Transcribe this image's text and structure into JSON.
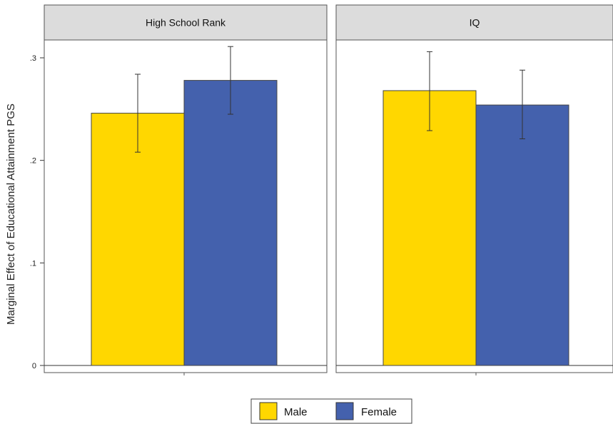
{
  "chart_data": {
    "type": "bar",
    "ylabel": "Marginal Effect of Educational Attainment PGS",
    "ylim": [
      -0.003,
      0.345
    ],
    "yticks": [
      {
        "value": 0,
        "label": "0"
      },
      {
        "value": 0.1,
        "label": ".1"
      },
      {
        "value": 0.2,
        "label": ".2"
      },
      {
        "value": 0.3,
        "label": ".3"
      }
    ],
    "colors": {
      "Male": "#FFD700",
      "Female": "#4461AD"
    },
    "legend": {
      "placement": "bottom",
      "entries": [
        "Male",
        "Female"
      ]
    },
    "grid": false,
    "panels": [
      {
        "title": "High School Rank",
        "bars": [
          {
            "series": "Male",
            "value": 0.246,
            "ci_low": 0.208,
            "ci_high": 0.284
          },
          {
            "series": "Female",
            "value": 0.278,
            "ci_low": 0.245,
            "ci_high": 0.311
          }
        ]
      },
      {
        "title": "IQ",
        "bars": [
          {
            "series": "Male",
            "value": 0.268,
            "ci_low": 0.229,
            "ci_high": 0.306
          },
          {
            "series": "Female",
            "value": 0.254,
            "ci_low": 0.221,
            "ci_high": 0.288
          }
        ]
      }
    ]
  }
}
